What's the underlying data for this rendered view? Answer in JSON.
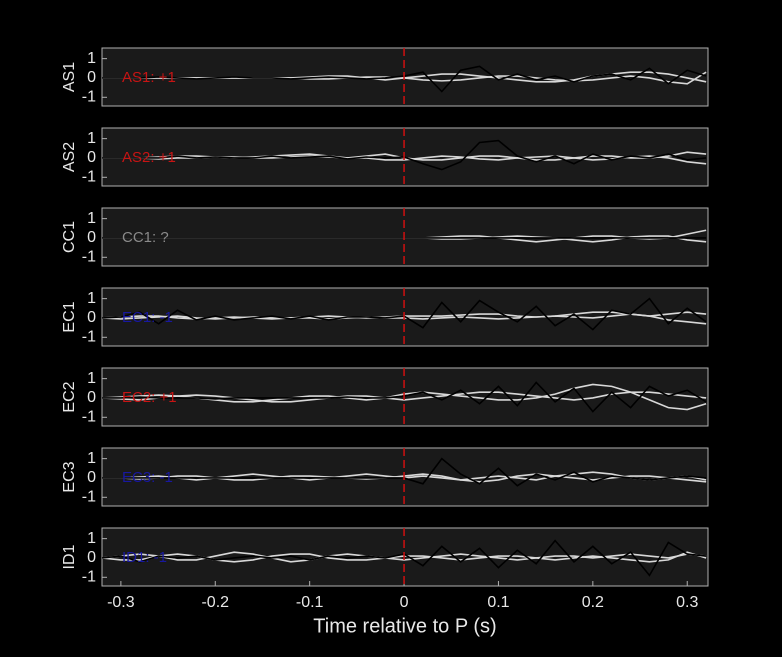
{
  "chart_data": [
    {
      "type": "line",
      "ylabel": "AS1",
      "annotation": {
        "text": "AS1: +1",
        "color": "#c81414"
      },
      "x": [
        -0.32,
        -0.3,
        -0.28,
        -0.26,
        -0.24,
        -0.22,
        -0.2,
        -0.18,
        -0.16,
        -0.14,
        -0.12,
        -0.1,
        -0.08,
        -0.06,
        -0.04,
        -0.02,
        0,
        0.02,
        0.04,
        0.06,
        0.08,
        0.1,
        0.12,
        0.14,
        0.16,
        0.18,
        0.2,
        0.22,
        0.24,
        0.26,
        0.28,
        0.3,
        0.32
      ],
      "xlim": [
        -0.32,
        0.322
      ],
      "ylim": [
        -1.45,
        1.55
      ],
      "yticks": [
        -1,
        0,
        1
      ],
      "vline": 0,
      "vline_color": "#d01010",
      "series": [
        {
          "color": "#d8d8d8",
          "values": [
            0,
            0,
            0,
            0,
            0,
            0,
            0,
            0,
            0,
            0,
            0,
            0.05,
            0.1,
            0.1,
            0,
            -0.1,
            0,
            0.1,
            0.2,
            0.2,
            0.1,
            0,
            -0.1,
            -0.2,
            -0.2,
            -0.1,
            0.1,
            0.2,
            0.3,
            0.3,
            0.2,
            0,
            -0.2
          ]
        },
        {
          "color": "#d8d8d8",
          "values": [
            0,
            0,
            0,
            0,
            0,
            0,
            0,
            0,
            0,
            0,
            0,
            -0.05,
            -0.05,
            0,
            0.05,
            0.05,
            0,
            -0.1,
            -0.15,
            -0.1,
            0,
            0.1,
            0.1,
            0,
            -0.1,
            -0.15,
            -0.1,
            0,
            0.1,
            0,
            -0.2,
            -0.3,
            0.3
          ]
        },
        {
          "color": "#000000",
          "values": [
            0,
            0,
            0,
            0.05,
            0,
            -0.05,
            0,
            0.05,
            0,
            0,
            -0.05,
            0,
            0.05,
            0,
            -0.05,
            0,
            0.1,
            0.3,
            -0.7,
            0.4,
            0.6,
            -0.1,
            0.2,
            -0.1,
            0.1,
            -0.2,
            0.1,
            0.2,
            -0.1,
            0.5,
            -0.3,
            0.4,
            0.1
          ]
        }
      ]
    },
    {
      "type": "line",
      "ylabel": "AS2",
      "annotation": {
        "text": "AS2: +1",
        "color": "#c81414"
      },
      "x": [
        -0.32,
        -0.3,
        -0.28,
        -0.26,
        -0.24,
        -0.22,
        -0.2,
        -0.18,
        -0.16,
        -0.14,
        -0.12,
        -0.1,
        -0.08,
        -0.06,
        -0.04,
        -0.02,
        0,
        0.02,
        0.04,
        0.06,
        0.08,
        0.1,
        0.12,
        0.14,
        0.16,
        0.18,
        0.2,
        0.22,
        0.24,
        0.26,
        0.28,
        0.3,
        0.32
      ],
      "xlim": [
        -0.32,
        0.322
      ],
      "ylim": [
        -1.45,
        1.55
      ],
      "yticks": [
        -1,
        0,
        1
      ],
      "vline": 0,
      "vline_color": "#d01010",
      "series": [
        {
          "color": "#d8d8d8",
          "values": [
            0,
            0,
            0,
            0.05,
            0.1,
            0.1,
            0.05,
            0,
            0.05,
            0.1,
            0.15,
            0.2,
            0.1,
            0,
            0.1,
            0.2,
            0,
            -0.1,
            -0.1,
            0,
            0.1,
            0.1,
            0,
            -0.1,
            -0.1,
            0,
            0.1,
            0.1,
            0,
            0,
            0.1,
            0.3,
            0.2
          ]
        },
        {
          "color": "#d8d8d8",
          "values": [
            0,
            0,
            0,
            -0.05,
            0,
            0,
            0.05,
            0.05,
            0,
            0,
            0.05,
            0.1,
            0.05,
            0,
            0,
            -0.1,
            -0.1,
            0,
            0.1,
            0.05,
            -0.05,
            -0.1,
            0,
            0.05,
            0.1,
            0,
            -0.1,
            -0.05,
            0.05,
            0.1,
            0,
            -0.2,
            -0.3
          ]
        },
        {
          "color": "#000000",
          "values": [
            0,
            0,
            0,
            0,
            0.1,
            0,
            0.05,
            0,
            0,
            0.1,
            0,
            0.05,
            0.1,
            -0.05,
            0.05,
            0,
            0.05,
            -0.3,
            -0.6,
            -0.2,
            0.8,
            0.9,
            0.1,
            -0.2,
            0.1,
            -0.3,
            0.2,
            -0.1,
            0.1,
            0,
            0.2,
            -0.1,
            0
          ]
        }
      ]
    },
    {
      "type": "line",
      "ylabel": "CC1",
      "annotation": {
        "text": "CC1: ?",
        "color": "#8a8a8a"
      },
      "x": [
        -0.32,
        -0.3,
        -0.28,
        -0.26,
        -0.24,
        -0.22,
        -0.2,
        -0.18,
        -0.16,
        -0.14,
        -0.12,
        -0.1,
        -0.08,
        -0.06,
        -0.04,
        -0.02,
        0,
        0.02,
        0.04,
        0.06,
        0.08,
        0.1,
        0.12,
        0.14,
        0.16,
        0.18,
        0.2,
        0.22,
        0.24,
        0.26,
        0.28,
        0.3,
        0.32
      ],
      "xlim": [
        -0.32,
        0.322
      ],
      "ylim": [
        -1.45,
        1.55
      ],
      "yticks": [
        -1,
        0,
        1
      ],
      "vline": 0,
      "vline_color": "#d01010",
      "series": [
        {
          "color": "#d8d8d8",
          "values": [
            0,
            0,
            0,
            0,
            0,
            0,
            0,
            0,
            0,
            0,
            0,
            0,
            0,
            0,
            0,
            0,
            0,
            0,
            0.05,
            0.1,
            0.1,
            0,
            -0.1,
            -0.2,
            -0.1,
            0,
            0.1,
            0.1,
            0,
            -0.05,
            0,
            0.2,
            0.4
          ]
        },
        {
          "color": "#d8d8d8",
          "values": [
            0,
            0,
            0,
            0,
            0,
            0,
            0,
            0,
            0,
            0,
            0,
            0,
            0,
            0,
            0,
            0,
            0,
            0,
            -0.05,
            -0.05,
            0,
            0.05,
            0.1,
            0.05,
            0,
            -0.1,
            -0.2,
            -0.1,
            0.05,
            0.1,
            0.1,
            -0.1,
            -0.2
          ]
        },
        {
          "color": "#000000",
          "values": [
            0,
            0,
            0,
            0,
            0,
            0,
            0,
            0,
            0,
            0,
            0,
            0,
            0,
            0,
            0,
            0,
            0,
            0,
            0,
            0,
            0,
            0,
            0,
            0,
            0,
            0,
            0,
            0,
            0,
            0,
            0,
            0,
            0
          ]
        }
      ]
    },
    {
      "type": "line",
      "ylabel": "EC1",
      "annotation": {
        "text": "EC1: -1",
        "color": "#1818a0"
      },
      "x": [
        -0.32,
        -0.3,
        -0.28,
        -0.26,
        -0.24,
        -0.22,
        -0.2,
        -0.18,
        -0.16,
        -0.14,
        -0.12,
        -0.1,
        -0.08,
        -0.06,
        -0.04,
        -0.02,
        0,
        0.02,
        0.04,
        0.06,
        0.08,
        0.1,
        0.12,
        0.14,
        0.16,
        0.18,
        0.2,
        0.22,
        0.24,
        0.26,
        0.28,
        0.3,
        0.32
      ],
      "xlim": [
        -0.32,
        0.322
      ],
      "ylim": [
        -1.45,
        1.55
      ],
      "yticks": [
        -1,
        0,
        1
      ],
      "vline": 0,
      "vline_color": "#d01010",
      "series": [
        {
          "color": "#d8d8d8",
          "values": [
            0,
            0.05,
            0.1,
            0.1,
            0,
            -0.05,
            0,
            0.05,
            0,
            -0.05,
            0,
            0.05,
            0.1,
            0.05,
            0,
            0.05,
            0.1,
            0.1,
            0.1,
            0.15,
            0.2,
            0.2,
            0.1,
            0.05,
            0.1,
            0.2,
            0.3,
            0.3,
            0.2,
            0.1,
            0.2,
            0.3,
            0.2
          ]
        },
        {
          "color": "#d8d8d8",
          "values": [
            0,
            -0.05,
            0,
            0.05,
            0.1,
            0,
            -0.05,
            0,
            0.05,
            0,
            0,
            0,
            -0.05,
            0,
            0.05,
            0,
            0,
            -0.05,
            0,
            0.05,
            0,
            -0.05,
            0,
            0.05,
            0.1,
            0.05,
            0,
            0.1,
            0.2,
            0.1,
            -0.1,
            -0.2,
            -0.3
          ]
        },
        {
          "color": "#000000",
          "values": [
            0,
            0.05,
            0.3,
            -0.3,
            0.4,
            -0.1,
            0.1,
            -0.1,
            0,
            0.1,
            -0.05,
            0.1,
            -0.1,
            0.05,
            0.05,
            0,
            0.1,
            -0.5,
            0.8,
            -0.2,
            0.9,
            0.3,
            -0.2,
            0.6,
            -0.4,
            0.2,
            -0.6,
            0.4,
            0.2,
            1.0,
            -0.3,
            0.5,
            -0.2
          ]
        }
      ]
    },
    {
      "type": "line",
      "ylabel": "EC2",
      "annotation": {
        "text": "EC2: +1",
        "color": "#c81414"
      },
      "x": [
        -0.32,
        -0.3,
        -0.28,
        -0.26,
        -0.24,
        -0.22,
        -0.2,
        -0.18,
        -0.16,
        -0.14,
        -0.12,
        -0.1,
        -0.08,
        -0.06,
        -0.04,
        -0.02,
        0,
        0.02,
        0.04,
        0.06,
        0.08,
        0.1,
        0.12,
        0.14,
        0.16,
        0.18,
        0.2,
        0.22,
        0.24,
        0.26,
        0.28,
        0.3,
        0.32
      ],
      "xlim": [
        -0.32,
        0.322
      ],
      "ylim": [
        -1.45,
        1.55
      ],
      "yticks": [
        -1,
        0,
        1
      ],
      "vline": 0,
      "vline_color": "#d01010",
      "series": [
        {
          "color": "#d8d8d8",
          "values": [
            0,
            0.05,
            0.1,
            0.15,
            0.1,
            0,
            -0.1,
            -0.2,
            -0.2,
            -0.1,
            0,
            0.1,
            0.1,
            0,
            -0.1,
            0,
            0.2,
            0.3,
            0.2,
            0.1,
            0,
            -0.1,
            -0.1,
            0,
            0.2,
            0.5,
            0.7,
            0.6,
            0.3,
            -0.1,
            -0.5,
            -0.6,
            -0.3
          ]
        },
        {
          "color": "#d8d8d8",
          "values": [
            0,
            -0.05,
            -0.1,
            0,
            0.1,
            0.15,
            0.1,
            0,
            -0.1,
            -0.2,
            -0.2,
            -0.1,
            0,
            0.1,
            0.1,
            0,
            -0.1,
            0,
            0.1,
            0.2,
            0.3,
            0.3,
            0.2,
            0.1,
            0,
            -0.1,
            0,
            0.2,
            0.3,
            0.3,
            0.2,
            0.1,
            0
          ]
        },
        {
          "color": "#000000",
          "values": [
            0,
            0,
            0.05,
            0,
            0,
            0,
            -0.05,
            0,
            0,
            0,
            0,
            0,
            0,
            0.05,
            0,
            0,
            0.1,
            0.3,
            -0.1,
            0.4,
            -0.3,
            0.6,
            -0.4,
            0.8,
            -0.2,
            0.5,
            -0.7,
            0.3,
            -0.5,
            0.6,
            0.1,
            0.4,
            -0.2
          ]
        }
      ]
    },
    {
      "type": "line",
      "ylabel": "EC3",
      "annotation": {
        "text": "EC3: -1",
        "color": "#1818a0"
      },
      "x": [
        -0.32,
        -0.3,
        -0.28,
        -0.26,
        -0.24,
        -0.22,
        -0.2,
        -0.18,
        -0.16,
        -0.14,
        -0.12,
        -0.1,
        -0.08,
        -0.06,
        -0.04,
        -0.02,
        0,
        0.02,
        0.04,
        0.06,
        0.08,
        0.1,
        0.12,
        0.14,
        0.16,
        0.18,
        0.2,
        0.22,
        0.24,
        0.26,
        0.28,
        0.3,
        0.32
      ],
      "xlim": [
        -0.32,
        0.322
      ],
      "ylim": [
        -1.45,
        1.55
      ],
      "yticks": [
        -1,
        0,
        1
      ],
      "vline": 0,
      "vline_color": "#d01010",
      "series": [
        {
          "color": "#d8d8d8",
          "values": [
            0,
            0,
            0.05,
            0.1,
            0,
            -0.1,
            0,
            0.1,
            0.2,
            0.1,
            0,
            -0.1,
            0,
            0.1,
            0.2,
            0.1,
            0,
            0.1,
            0,
            -0.1,
            0,
            0.1,
            0,
            -0.1,
            0.1,
            0.2,
            0.3,
            0.2,
            0,
            -0.1,
            0,
            0.1,
            -0.1
          ]
        },
        {
          "color": "#d8d8d8",
          "values": [
            0,
            0,
            -0.05,
            0,
            0.1,
            0.1,
            0,
            -0.1,
            -0.1,
            0,
            0.1,
            0.1,
            0.05,
            0,
            -0.05,
            0,
            0.1,
            0.2,
            0.1,
            -0.1,
            -0.2,
            -0.1,
            0.1,
            0.2,
            0.1,
            0,
            -0.1,
            0,
            0.1,
            0.1,
            0,
            -0.1,
            -0.2
          ]
        },
        {
          "color": "#000000",
          "values": [
            0,
            0,
            0,
            0,
            0,
            0,
            0,
            0,
            0,
            0,
            0,
            0,
            0,
            0,
            0,
            0,
            0,
            -0.3,
            1.0,
            0.2,
            -0.3,
            0.5,
            -0.4,
            0.2,
            -0.1,
            0.3,
            -0.2,
            0.1,
            0,
            -0.1,
            0,
            0.1,
            0
          ]
        }
      ]
    },
    {
      "type": "line",
      "ylabel": "ID1",
      "annotation": {
        "text": "ID1: -1",
        "color": "#1818a0"
      },
      "x": [
        -0.32,
        -0.3,
        -0.28,
        -0.26,
        -0.24,
        -0.22,
        -0.2,
        -0.18,
        -0.16,
        -0.14,
        -0.12,
        -0.1,
        -0.08,
        -0.06,
        -0.04,
        -0.02,
        0,
        0.02,
        0.04,
        0.06,
        0.08,
        0.1,
        0.12,
        0.14,
        0.16,
        0.18,
        0.2,
        0.22,
        0.24,
        0.26,
        0.28,
        0.3,
        0.32
      ],
      "xlim": [
        -0.32,
        0.322
      ],
      "ylim": [
        -1.45,
        1.55
      ],
      "yticks": [
        -1,
        0,
        1
      ],
      "vline": 0,
      "vline_color": "#d01010",
      "series": [
        {
          "color": "#d8d8d8",
          "values": [
            0,
            0.1,
            0.2,
            0.1,
            -0.1,
            -0.1,
            0.1,
            0.3,
            0.2,
            0,
            -0.2,
            -0.1,
            0.1,
            0.2,
            0.1,
            0,
            -0.1,
            0,
            0.1,
            0.2,
            0.1,
            0,
            -0.1,
            0,
            0.1,
            0.1,
            0,
            0.1,
            0.2,
            0.1,
            0,
            0.2,
            0.1
          ]
        },
        {
          "color": "#d8d8d8",
          "values": [
            0,
            -0.1,
            -0.1,
            0.1,
            0.2,
            0.1,
            -0.1,
            -0.2,
            -0.1,
            0.1,
            0.2,
            0.2,
            0,
            -0.1,
            -0.1,
            0,
            0.1,
            0.1,
            0,
            -0.1,
            0,
            0.1,
            0.1,
            0,
            -0.1,
            0,
            0.1,
            0,
            -0.1,
            -0.2,
            -0.1,
            0.3,
            0
          ]
        },
        {
          "color": "#000000",
          "values": [
            0,
            0.1,
            -0.2,
            0.1,
            0,
            0.1,
            -0.1,
            0,
            0.1,
            0,
            0.1,
            -0.1,
            0.1,
            0,
            0.1,
            0,
            0.2,
            -0.4,
            0.6,
            -0.2,
            0.5,
            -0.5,
            0.4,
            -0.3,
            0.9,
            -0.2,
            0.6,
            -0.3,
            0.3,
            -0.9,
            0.8,
            0.2,
            0.1
          ]
        }
      ],
      "xticks": [
        -0.3,
        -0.2,
        -0.1,
        0,
        0.1,
        0.2,
        0.3
      ],
      "xlabel": "Time relative to P (s)"
    }
  ]
}
